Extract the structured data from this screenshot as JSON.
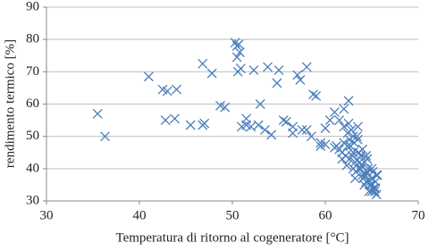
{
  "chart_data": {
    "type": "scatter",
    "x_label": "Temperatura di ritorno al cogeneratore [°C]",
    "y_label": "rendimento termico [%]",
    "color": "#4a7ebb",
    "marker": "x",
    "grid": true,
    "xlim": [
      30,
      70
    ],
    "xticks": [
      30,
      40,
      50,
      60,
      70
    ],
    "ylim": [
      30,
      90
    ],
    "yticks": [
      30,
      40,
      50,
      60,
      70,
      80,
      90
    ],
    "x": [
      35.5,
      36.3,
      41,
      42.5,
      43,
      44,
      42.8,
      43.8,
      45.5,
      46.8,
      47,
      46.8,
      47.8,
      48.7,
      49.2,
      50.3,
      50.5,
      50.7,
      50.5,
      50.8,
      50.9,
      50.6,
      51,
      51.5,
      51.5,
      52,
      52.3,
      53,
      52.8,
      53.5,
      53.8,
      54.2,
      55,
      54.8,
      55.5,
      55.8,
      56.5,
      56.5,
      57,
      57.3,
      58,
      57.5,
      58,
      58.5,
      58.7,
      59,
      59.5,
      60,
      60.5,
      61,
      61.5,
      62,
      62.5,
      59.5,
      60,
      61,
      61.2,
      61.5,
      61.8,
      62,
      62.2,
      62.4,
      62.6,
      62.8,
      63,
      63.2,
      63.4,
      63.6,
      63.8,
      64,
      64.2,
      64.4,
      64.6,
      64.8,
      65,
      65.2,
      65.4,
      62,
      62.5,
      63,
      63.5,
      64,
      64.5,
      65,
      65.5,
      62.3,
      62.9,
      63.3,
      63.7,
      64.1,
      64.5,
      64.9,
      65.3,
      61.8,
      62.7,
      63.1,
      63.5,
      63.9,
      64.3,
      64.7,
      65.1,
      65.5,
      62.4,
      63,
      63.6,
      64.2,
      64.8,
      65.4,
      62.6,
      63.2,
      63.8,
      64.4,
      65,
      65.6
    ],
    "y": [
      57,
      50,
      68.5,
      64.5,
      64,
      64.5,
      55,
      55.5,
      53.5,
      53.5,
      54,
      72.5,
      69.5,
      59.5,
      59,
      79,
      78,
      78.5,
      74.5,
      76,
      71,
      70,
      53,
      53.5,
      55.5,
      53,
      70.5,
      60,
      53.5,
      52,
      71.5,
      50.5,
      70.5,
      66.5,
      55,
      54.5,
      53,
      51,
      69,
      67.5,
      71.5,
      52,
      52,
      50,
      63,
      62.5,
      48,
      52.5,
      55,
      57.5,
      55,
      58.5,
      61,
      47,
      47.5,
      46.5,
      47,
      46,
      45,
      48,
      44,
      47,
      43,
      52,
      45,
      42,
      50,
      40,
      44,
      38,
      42,
      36,
      40,
      35,
      37,
      34,
      36,
      53,
      54,
      50,
      49,
      46,
      43,
      40,
      38,
      41,
      44,
      39,
      42,
      37,
      39,
      35,
      33,
      43,
      47,
      48,
      53,
      41,
      38,
      33,
      39,
      32,
      51,
      40,
      45,
      35,
      36,
      34,
      49,
      37,
      40,
      44,
      33,
      38
    ]
  }
}
